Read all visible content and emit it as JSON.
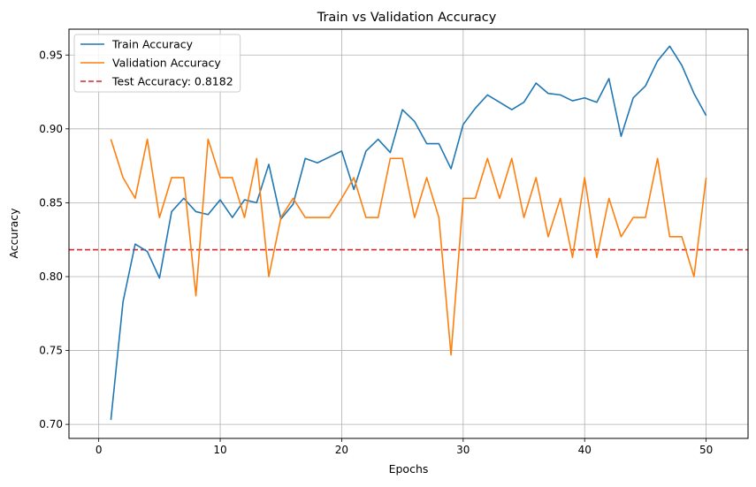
{
  "chart_data": {
    "type": "line",
    "title": "Train vs Validation Accuracy",
    "xlabel": "Epochs",
    "ylabel": "Accuracy",
    "xlim": [
      -2.45,
      53.45
    ],
    "ylim": [
      0.6905,
      0.9675
    ],
    "x_ticks": [
      0,
      10,
      20,
      30,
      40,
      50
    ],
    "y_ticks": [
      0.7,
      0.75,
      0.8,
      0.85,
      0.9,
      0.95
    ],
    "x_tick_labels": [
      "0",
      "10",
      "20",
      "30",
      "40",
      "50"
    ],
    "y_tick_labels": [
      "0.70",
      "0.75",
      "0.80",
      "0.85",
      "0.90",
      "0.95"
    ],
    "grid": true,
    "legend_position": "top-left",
    "x": [
      1,
      2,
      3,
      4,
      5,
      6,
      7,
      8,
      9,
      10,
      11,
      12,
      13,
      14,
      15,
      16,
      17,
      18,
      19,
      20,
      21,
      22,
      23,
      24,
      25,
      26,
      27,
      28,
      29,
      30,
      31,
      32,
      33,
      34,
      35,
      36,
      37,
      38,
      39,
      40,
      41,
      42,
      43,
      44,
      45,
      46,
      47,
      48,
      49,
      50
    ],
    "series": [
      {
        "name": "Train Accuracy",
        "color": "#1f77b4",
        "style": "solid",
        "values": [
          0.703,
          0.783,
          0.822,
          0.817,
          0.799,
          0.844,
          0.853,
          0.844,
          0.842,
          0.852,
          0.84,
          0.852,
          0.85,
          0.876,
          0.839,
          0.849,
          0.88,
          0.877,
          0.881,
          0.885,
          0.859,
          0.885,
          0.893,
          0.884,
          0.913,
          0.905,
          0.89,
          0.89,
          0.873,
          0.903,
          0.914,
          0.923,
          0.918,
          0.913,
          0.918,
          0.931,
          0.924,
          0.923,
          0.919,
          0.921,
          0.918,
          0.934,
          0.895,
          0.921,
          0.929,
          0.946,
          0.956,
          0.943,
          0.924,
          0.909
        ]
      },
      {
        "name": "Validation Accuracy",
        "color": "#ff7f0e",
        "style": "solid",
        "values": [
          0.893,
          0.867,
          0.853,
          0.893,
          0.84,
          0.867,
          0.867,
          0.787,
          0.893,
          0.867,
          0.867,
          0.84,
          0.88,
          0.8,
          0.84,
          0.853,
          0.84,
          0.84,
          0.84,
          0.853,
          0.867,
          0.84,
          0.84,
          0.88,
          0.88,
          0.84,
          0.867,
          0.84,
          0.747,
          0.853,
          0.853,
          0.88,
          0.853,
          0.88,
          0.84,
          0.867,
          0.827,
          0.853,
          0.813,
          0.867,
          0.813,
          0.853,
          0.827,
          0.84,
          0.84,
          0.88,
          0.827,
          0.827,
          0.8,
          0.867
        ]
      }
    ],
    "reference_lines": [
      {
        "name": "Test Accuracy: 0.8182",
        "value": 0.8182,
        "color": "#d62728",
        "style": "dashed"
      }
    ]
  }
}
